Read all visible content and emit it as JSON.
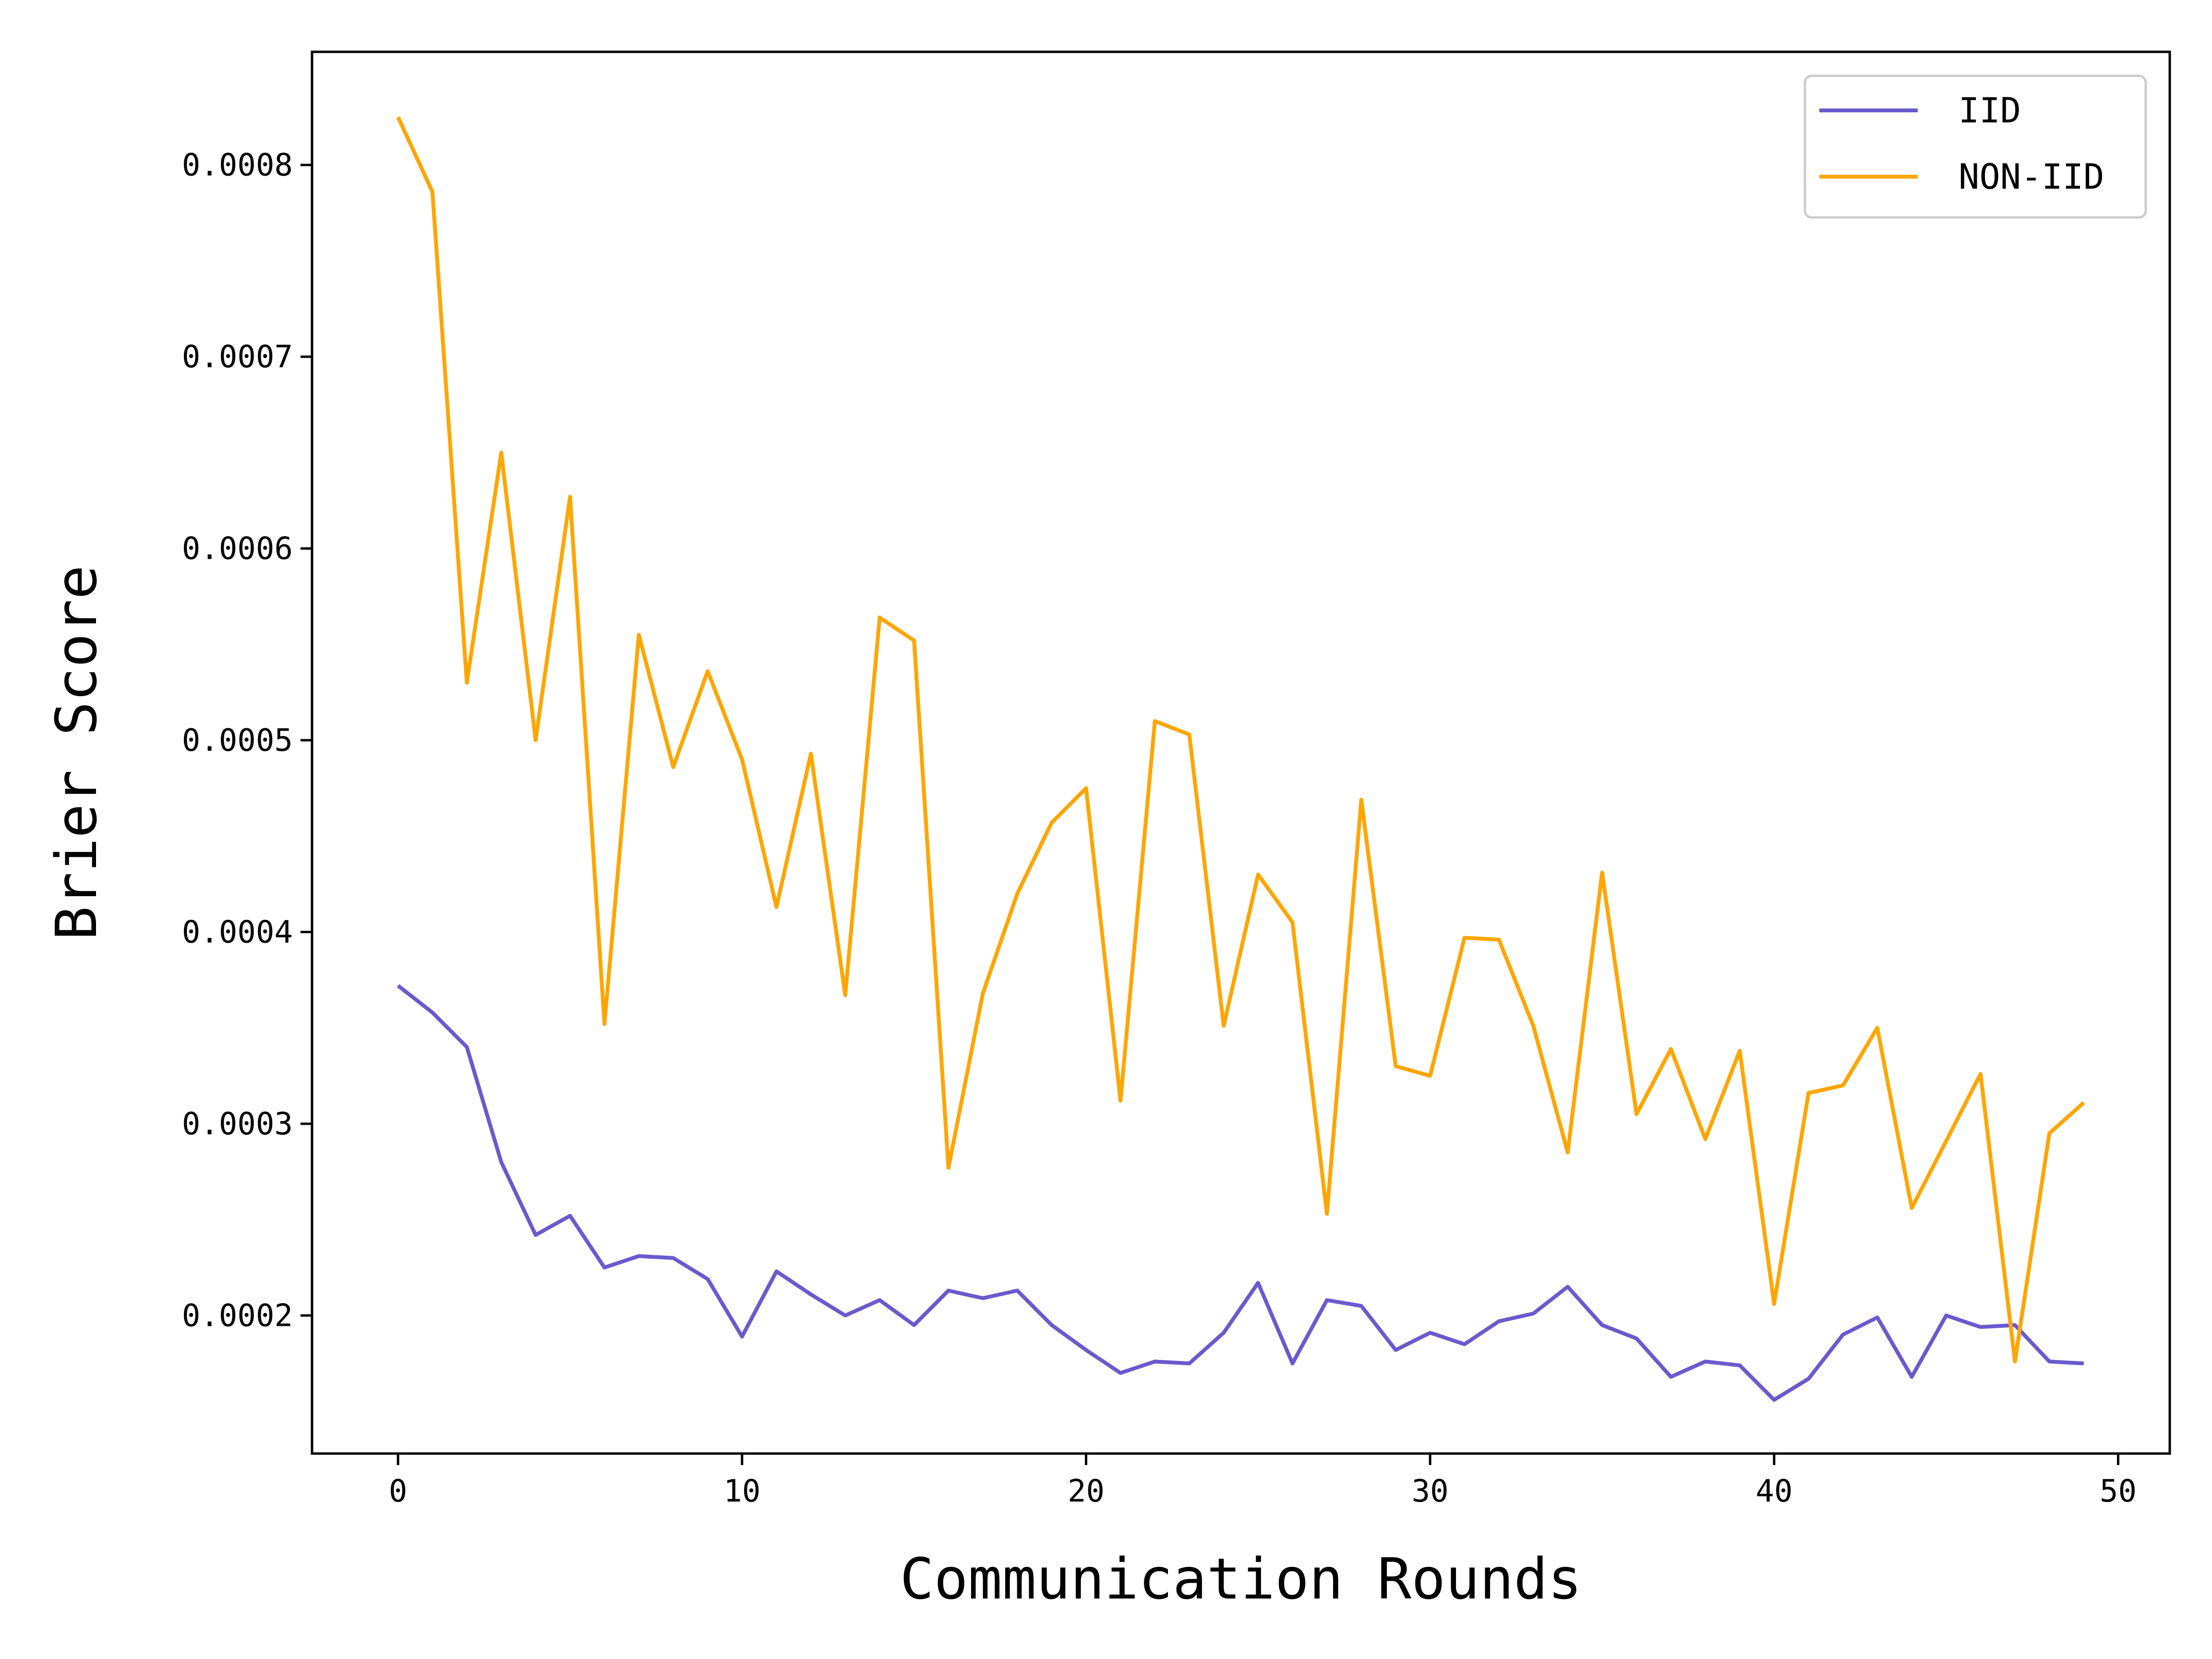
{
  "chart_data": {
    "type": "line",
    "title": "",
    "xlabel": "Communication Rounds",
    "ylabel": "Brier Score",
    "xlim": [
      -2.5,
      51.5
    ],
    "ylim": [
      0.000128,
      0.000859
    ],
    "xticks": [
      0,
      10,
      20,
      30,
      40,
      50
    ],
    "xtick_labels": [
      "0",
      "10",
      "20",
      "30",
      "40",
      "50"
    ],
    "yticks": [
      0.0002,
      0.0003,
      0.0004,
      0.0005,
      0.0006,
      0.0007,
      0.0008
    ],
    "ytick_labels": [
      "0.0002",
      "0.0003",
      "0.0004",
      "0.0005",
      "0.0006",
      "0.0007",
      "0.0008"
    ],
    "grid": false,
    "legend_position": "top-right",
    "x": [
      0,
      1,
      2,
      3,
      4,
      5,
      6,
      7,
      8,
      9,
      10,
      11,
      12,
      13,
      14,
      15,
      16,
      17,
      18,
      19,
      20,
      21,
      22,
      23,
      24,
      25,
      26,
      27,
      28,
      29,
      30,
      31,
      32,
      33,
      34,
      35,
      36,
      37,
      38,
      39,
      40,
      41,
      42,
      43,
      44,
      45,
      46,
      47,
      48,
      49
    ],
    "series": [
      {
        "name": "IID",
        "color": "#6a5acd",
        "values": [
          0.000372,
          0.000358,
          0.00034,
          0.00028,
          0.000242,
          0.000252,
          0.000225,
          0.000231,
          0.00023,
          0.000219,
          0.000189,
          0.000223,
          0.000211,
          0.0002,
          0.000208,
          0.000195,
          0.000213,
          0.000209,
          0.000213,
          0.000195,
          0.000182,
          0.00017,
          0.000176,
          0.000175,
          0.000191,
          0.000217,
          0.000175,
          0.000208,
          0.000205,
          0.000182,
          0.000191,
          0.000185,
          0.000197,
          0.000201,
          0.000215,
          0.000195,
          0.000188,
          0.000168,
          0.000176,
          0.000174,
          0.000156,
          0.000167,
          0.00019,
          0.000199,
          0.000168,
          0.0002,
          0.000194,
          0.000195,
          0.000176,
          0.000175
        ]
      },
      {
        "name": "NON-IID",
        "color": "#ffa500",
        "values": [
          0.000825,
          0.000786,
          0.00053,
          0.00065,
          0.0005,
          0.000627,
          0.000352,
          0.000555,
          0.000486,
          0.000536,
          0.00049,
          0.000413,
          0.000493,
          0.000367,
          0.000564,
          0.000552,
          0.000277,
          0.000368,
          0.00042,
          0.000457,
          0.000475,
          0.000312,
          0.00051,
          0.000503,
          0.000351,
          0.00043,
          0.000405,
          0.000253,
          0.000469,
          0.00033,
          0.000325,
          0.000397,
          0.000396,
          0.000351,
          0.000285,
          0.000431,
          0.000305,
          0.000339,
          0.000292,
          0.000338,
          0.000206,
          0.000316,
          0.00032,
          0.00035,
          0.000256,
          0.000291,
          0.000326,
          0.000176,
          0.000295,
          0.000311
        ]
      }
    ]
  }
}
